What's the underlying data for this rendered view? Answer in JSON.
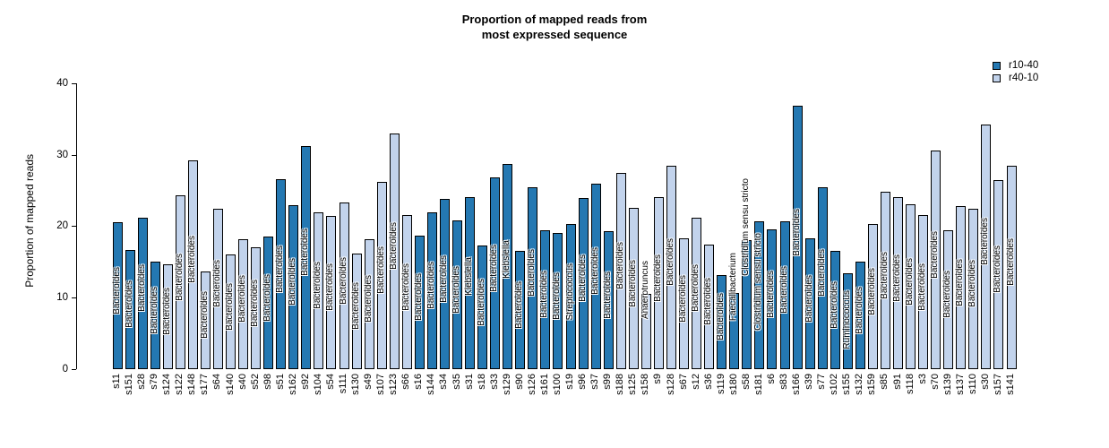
{
  "title": {
    "line1": "Proportion of mapped reads from",
    "line2": "most expressed sequence"
  },
  "y_axis": {
    "label": "Proportion of mapped reads",
    "ticks": [
      0,
      10,
      20,
      30,
      40
    ]
  },
  "legend": [
    {
      "label": "r10-40",
      "color": "#2478b2"
    },
    {
      "label": "r40-10",
      "color": "#c2d3ec"
    }
  ],
  "colors": {
    "r10-40": "#2478b2",
    "r40-10": "#c2d3ec",
    "bar_border": "#000000"
  },
  "chart_data": {
    "type": "bar",
    "title": "Proportion of mapped reads from most expressed sequence",
    "xlabel": "",
    "ylabel": "Proportion of mapped reads",
    "ylim": [
      0,
      40
    ],
    "yticks": [
      0,
      10,
      20,
      30,
      40
    ],
    "grid": false,
    "legend_position": "top-right",
    "series_legend": [
      {
        "name": "r10-40",
        "color": "#2478b2"
      },
      {
        "name": "r40-10",
        "color": "#c2d3ec"
      }
    ],
    "bars": [
      {
        "sample": "s11",
        "taxon": "Bacteroides",
        "value": 20.6,
        "group": "r10-40"
      },
      {
        "sample": "s151",
        "taxon": "Bacteroides",
        "value": 16.7,
        "group": "r10-40"
      },
      {
        "sample": "s28",
        "taxon": "Bacteroides",
        "value": 21.2,
        "group": "r10-40"
      },
      {
        "sample": "s79",
        "taxon": "Bacteroides",
        "value": 15.0,
        "group": "r10-40"
      },
      {
        "sample": "s124",
        "taxon": "Bacteroides",
        "value": 14.7,
        "group": "r40-10"
      },
      {
        "sample": "s122",
        "taxon": "Bacteroides",
        "value": 24.3,
        "group": "r40-10"
      },
      {
        "sample": "s148",
        "taxon": "Bacteroides",
        "value": 29.2,
        "group": "r40-10"
      },
      {
        "sample": "s177",
        "taxon": "Bacteroides",
        "value": 13.6,
        "group": "r40-10"
      },
      {
        "sample": "s64",
        "taxon": "Bacteroides",
        "value": 22.4,
        "group": "r40-10"
      },
      {
        "sample": "s140",
        "taxon": "Bacteroides",
        "value": 16.0,
        "group": "r40-10"
      },
      {
        "sample": "s40",
        "taxon": "Bacteroides",
        "value": 18.2,
        "group": "r40-10"
      },
      {
        "sample": "s52",
        "taxon": "Bacteroides",
        "value": 17.1,
        "group": "r40-10"
      },
      {
        "sample": "s98",
        "taxon": "Bacteroides",
        "value": 18.6,
        "group": "r10-40"
      },
      {
        "sample": "s51",
        "taxon": "Bacteroides",
        "value": 26.6,
        "group": "r10-40"
      },
      {
        "sample": "s162",
        "taxon": "Bacteroides",
        "value": 22.9,
        "group": "r10-40"
      },
      {
        "sample": "s92",
        "taxon": "Bacteroides",
        "value": 31.2,
        "group": "r10-40"
      },
      {
        "sample": "s104",
        "taxon": "Bacteroides",
        "value": 21.9,
        "group": "r40-10"
      },
      {
        "sample": "s54",
        "taxon": "Bacteroides",
        "value": 21.4,
        "group": "r40-10"
      },
      {
        "sample": "s111",
        "taxon": "Bacteroides",
        "value": 23.3,
        "group": "r40-10"
      },
      {
        "sample": "s130",
        "taxon": "Bacteroides",
        "value": 16.2,
        "group": "r40-10"
      },
      {
        "sample": "s49",
        "taxon": "Bacteroides",
        "value": 18.2,
        "group": "r40-10"
      },
      {
        "sample": "s107",
        "taxon": "Bacteroides",
        "value": 26.2,
        "group": "r40-10"
      },
      {
        "sample": "s123",
        "taxon": "Bacteroides",
        "value": 33.0,
        "group": "r40-10"
      },
      {
        "sample": "s66",
        "taxon": "Bacteroides",
        "value": 21.6,
        "group": "r40-10"
      },
      {
        "sample": "s16",
        "taxon": "Bacteroides",
        "value": 18.7,
        "group": "r10-40"
      },
      {
        "sample": "s144",
        "taxon": "Bacteroides",
        "value": 21.9,
        "group": "r10-40"
      },
      {
        "sample": "s34",
        "taxon": "Bacteroides",
        "value": 23.8,
        "group": "r10-40"
      },
      {
        "sample": "s35",
        "taxon": "Bacteroides",
        "value": 20.8,
        "group": "r10-40"
      },
      {
        "sample": "s31",
        "taxon": "Klebsiella",
        "value": 24.0,
        "group": "r10-40"
      },
      {
        "sample": "s18",
        "taxon": "Bacteroides",
        "value": 17.3,
        "group": "r10-40"
      },
      {
        "sample": "s33",
        "taxon": "Bacteroides",
        "value": 26.8,
        "group": "r10-40"
      },
      {
        "sample": "s129",
        "taxon": "Klebsiella",
        "value": 28.7,
        "group": "r10-40"
      },
      {
        "sample": "s90",
        "taxon": "Bacteroides",
        "value": 16.6,
        "group": "r10-40"
      },
      {
        "sample": "s126",
        "taxon": "Bacteroides",
        "value": 25.5,
        "group": "r10-40"
      },
      {
        "sample": "s161",
        "taxon": "Bacteroides",
        "value": 19.4,
        "group": "r10-40"
      },
      {
        "sample": "s100",
        "taxon": "Bacteroides",
        "value": 19.0,
        "group": "r10-40"
      },
      {
        "sample": "s19",
        "taxon": "Streptococcus",
        "value": 20.3,
        "group": "r10-40"
      },
      {
        "sample": "s96",
        "taxon": "Bacteroides",
        "value": 23.9,
        "group": "r10-40"
      },
      {
        "sample": "s37",
        "taxon": "Bacteroides",
        "value": 26.0,
        "group": "r10-40"
      },
      {
        "sample": "s99",
        "taxon": "Bacteroides",
        "value": 19.3,
        "group": "r10-40"
      },
      {
        "sample": "s188",
        "taxon": "Bacteroides",
        "value": 27.4,
        "group": "r40-10"
      },
      {
        "sample": "s125",
        "taxon": "Bacteroides",
        "value": 22.5,
        "group": "r40-10"
      },
      {
        "sample": "s158",
        "taxon": "Anaerotruncus",
        "value": 10.5,
        "group": "r40-10"
      },
      {
        "sample": "s9",
        "taxon": "Bacteroides",
        "value": 24.0,
        "group": "r40-10"
      },
      {
        "sample": "s128",
        "taxon": "Bacteroides",
        "value": 28.5,
        "group": "r40-10"
      },
      {
        "sample": "s67",
        "taxon": "Bacteroides",
        "value": 18.3,
        "group": "r40-10"
      },
      {
        "sample": "s12",
        "taxon": "Bacteroides",
        "value": 21.2,
        "group": "r40-10"
      },
      {
        "sample": "s36",
        "taxon": "Bacteroides",
        "value": 17.4,
        "group": "r40-10"
      },
      {
        "sample": "s119",
        "taxon": "Bacteroides",
        "value": 13.2,
        "group": "r10-40"
      },
      {
        "sample": "s180",
        "taxon": "Faecalibacterium",
        "value": 10.6,
        "group": "r10-40"
      },
      {
        "sample": "s58",
        "taxon": "Clostridium sensu stricto",
        "value": 18.1,
        "group": "r10-40"
      },
      {
        "sample": "s181",
        "taxon": "Clostridium sensu stricto",
        "value": 20.7,
        "group": "r10-40"
      },
      {
        "sample": "s6",
        "taxon": "Bacteroides",
        "value": 19.5,
        "group": "r10-40"
      },
      {
        "sample": "s83",
        "taxon": "Bacteroides",
        "value": 20.7,
        "group": "r10-40"
      },
      {
        "sample": "s166",
        "taxon": "Bacteroides",
        "value": 36.9,
        "group": "r10-40"
      },
      {
        "sample": "s39",
        "taxon": "Bacteroides",
        "value": 18.3,
        "group": "r10-40"
      },
      {
        "sample": "s77",
        "taxon": "Bacteroides",
        "value": 25.5,
        "group": "r10-40"
      },
      {
        "sample": "s102",
        "taxon": "Bacteroides",
        "value": 16.6,
        "group": "r10-40"
      },
      {
        "sample": "s155",
        "taxon": "Ruminococcus",
        "value": 13.4,
        "group": "r10-40"
      },
      {
        "sample": "s132",
        "taxon": "Bacteroides",
        "value": 15.1,
        "group": "r10-40"
      },
      {
        "sample": "s159",
        "taxon": "Bacteroides",
        "value": 20.3,
        "group": "r40-10"
      },
      {
        "sample": "s85",
        "taxon": "Bacteroides",
        "value": 24.8,
        "group": "r40-10"
      },
      {
        "sample": "s91",
        "taxon": "Bacteroides",
        "value": 24.0,
        "group": "r40-10"
      },
      {
        "sample": "s118",
        "taxon": "Bacteroides",
        "value": 23.1,
        "group": "r40-10"
      },
      {
        "sample": "s3",
        "taxon": "Bacteroides",
        "value": 21.6,
        "group": "r40-10"
      },
      {
        "sample": "s70",
        "taxon": "Bacteroides",
        "value": 30.6,
        "group": "r40-10"
      },
      {
        "sample": "s139",
        "taxon": "Bacteroides",
        "value": 19.4,
        "group": "r40-10"
      },
      {
        "sample": "s137",
        "taxon": "Bacteroides",
        "value": 22.8,
        "group": "r40-10"
      },
      {
        "sample": "s110",
        "taxon": "Bacteroides",
        "value": 22.4,
        "group": "r40-10"
      },
      {
        "sample": "s30",
        "taxon": "Bacteroides",
        "value": 34.2,
        "group": "r40-10"
      },
      {
        "sample": "s157",
        "taxon": "Bacteroides",
        "value": 26.4,
        "group": "r40-10"
      },
      {
        "sample": "s141",
        "taxon": "Bacteroides",
        "value": 28.4,
        "group": "r40-10"
      }
    ]
  }
}
